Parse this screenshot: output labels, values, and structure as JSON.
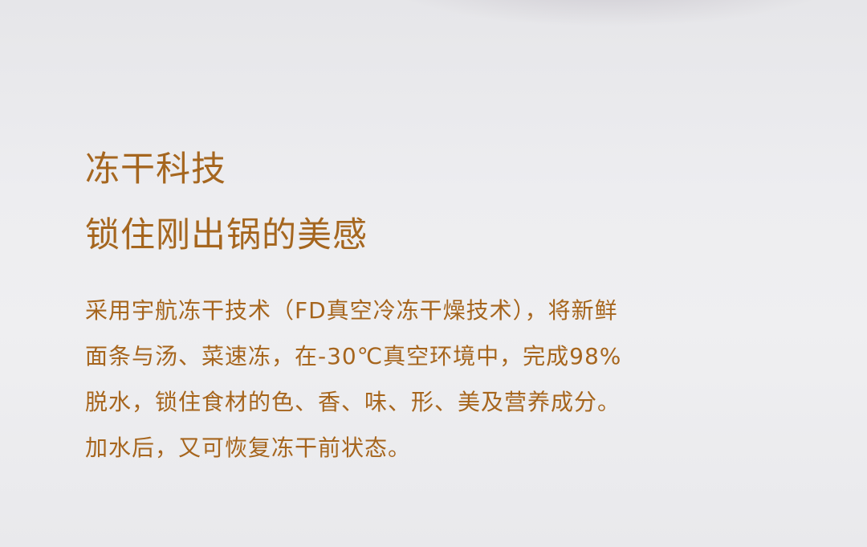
{
  "heading": {
    "line1": "冻干科技",
    "line2": "锁住刚出锅的美感"
  },
  "body": {
    "lines": [
      "采用宇航冻干技术（FD真空冷冻干燥技术），将新鲜",
      "面条与汤、菜速冻，在-30℃真空环境中，完成98%",
      "脱水，锁住食材的色、香、味、形、美及营养成分。",
      "加水后，又可恢复冻干前状态。"
    ]
  },
  "colors": {
    "accent": "#a5661f",
    "background": "#ececef"
  }
}
